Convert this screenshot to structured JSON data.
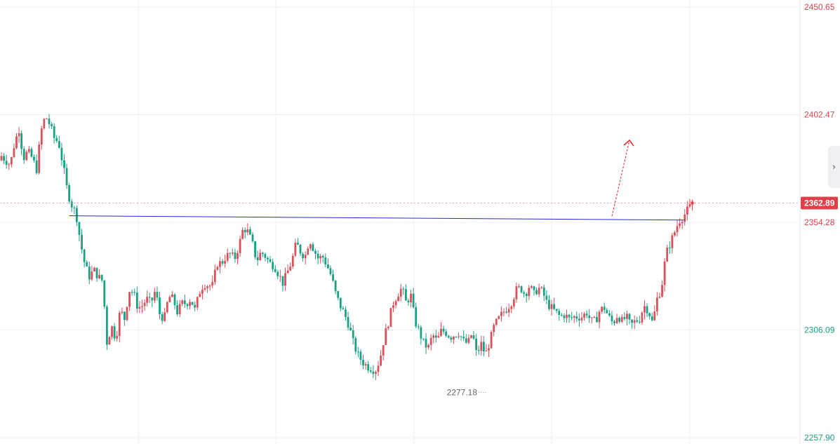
{
  "chart_data": {
    "type": "candlestick",
    "ylim": [
      2257.9,
      2450.65
    ],
    "grid": true,
    "y_tick_labels": [
      {
        "value": 2450.65,
        "label": "2450.65",
        "color": "#e0404a"
      },
      {
        "value": 2402.47,
        "label": "2402.47",
        "color": "#e0404a"
      },
      {
        "value": 2354.28,
        "label": "2354.28",
        "color": "#e0404a"
      },
      {
        "value": 2306.09,
        "label": "2306.09",
        "color": "#1a9e86"
      },
      {
        "value": 2257.9,
        "label": "2257.90",
        "color": "#1a9e86"
      }
    ],
    "last_price": {
      "value": 2362.89,
      "label": "2362.89"
    },
    "low_marker": {
      "value": 2277.18,
      "label": "2277.18"
    },
    "closes": [
      2384,
      2382,
      2380,
      2390,
      2396,
      2383,
      2386,
      2383,
      2378,
      2395,
      2402,
      2398,
      2392,
      2390,
      2380,
      2368,
      2362,
      2358,
      2345,
      2335,
      2330,
      2333,
      2330,
      2328,
      2300,
      2308,
      2302,
      2315,
      2311,
      2324,
      2323,
      2316,
      2317,
      2320,
      2318,
      2324,
      2313,
      2311,
      2321,
      2320,
      2314,
      2318,
      2318,
      2320,
      2315,
      2323,
      2327,
      2326,
      2326,
      2336,
      2336,
      2339,
      2340,
      2338,
      2344,
      2352,
      2350,
      2345,
      2337,
      2341,
      2339,
      2336,
      2335,
      2331,
      2327,
      2332,
      2337,
      2345,
      2341,
      2339,
      2347,
      2342,
      2338,
      2339,
      2335,
      2330,
      2322,
      2317,
      2313,
      2308,
      2300,
      2295,
      2292,
      2290,
      2289,
      2288,
      2293,
      2303,
      2310,
      2318,
      2322,
      2325,
      2318,
      2322,
      2310,
      2305,
      2300,
      2298,
      2304,
      2301,
      2306,
      2305,
      2303,
      2304,
      2305,
      2301,
      2300,
      2305,
      2295,
      2300,
      2295,
      2301,
      2308,
      2311,
      2314,
      2316,
      2319,
      2324,
      2325,
      2322,
      2326,
      2322,
      2325,
      2323,
      2318,
      2316,
      2314,
      2312,
      2313,
      2311,
      2312,
      2312,
      2312,
      2314,
      2310,
      2310,
      2315,
      2316,
      2312,
      2309,
      2313,
      2310,
      2312,
      2308,
      2310,
      2311,
      2317,
      2315,
      2309,
      2320,
      2325,
      2340,
      2345,
      2350,
      2355,
      2357,
      2360,
      2362.89
    ],
    "support_line": {
      "from_index": 27,
      "from_value": 2357.2,
      "to_index": 272,
      "to_value": 2355.3
    },
    "projection_arrow": {
      "from_index": 243,
      "from_value": 2357,
      "to_index": 250,
      "to_value": 2391
    }
  },
  "colors": {
    "up": "#d9515a",
    "down": "#1aa085",
    "grid": "#eef0f3",
    "support_line": "#2a2ad4",
    "arrow": "#e22222",
    "price_tag": "#e0404a"
  },
  "ui": {
    "expand_icon": "chevron-right-icon"
  }
}
